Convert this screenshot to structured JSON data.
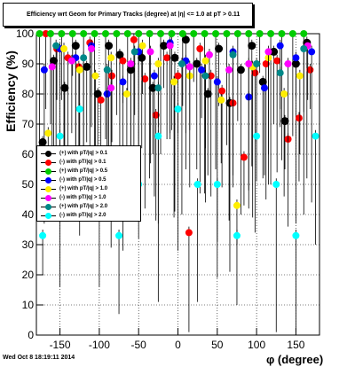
{
  "header": {
    "title": "Efficiency wrt Geom for Primary Tracks (degree) at |η| <= 1.0 at pT > 0.11"
  },
  "footer": {
    "timestamp": "Wed Oct  8 18:19:11 2014"
  },
  "chart_data": {
    "type": "scatter",
    "title": "Efficiency wrt Geom for Primary Tracks (degree) at |η| <= 1.0 at pT > 0.11",
    "xlabel": "φ (degree)",
    "ylabel": "Efficiency (%)",
    "xlim": [
      -180,
      180
    ],
    "ylim": [
      0,
      100
    ],
    "xticks": [
      -150,
      -100,
      -50,
      0,
      50,
      100,
      150
    ],
    "yticks": [
      0,
      10,
      20,
      30,
      40,
      50,
      60,
      70,
      80,
      90,
      100
    ],
    "grid": true,
    "legend": "middle-left",
    "series": [
      {
        "name": "(+) with pT/|q| > 0.1",
        "color": "#000000",
        "marker": "circle",
        "x": [
          -172,
          -158,
          -144,
          -130,
          -116,
          -102,
          -88,
          -74,
          -60,
          -46,
          -32,
          -18,
          -4,
          10,
          24,
          38,
          52,
          66,
          80,
          94,
          108,
          122,
          136,
          150,
          164
        ],
        "y": [
          64,
          91,
          82,
          96,
          89,
          80,
          96,
          93,
          88,
          92,
          82,
          96,
          92,
          98,
          90,
          80,
          95,
          77,
          88,
          96,
          84,
          94,
          71,
          90,
          97
        ]
      },
      {
        "name": "(-) with pT/|q| > 0.1",
        "color": "#ff0000",
        "marker": "circle",
        "x": [
          -168,
          -154,
          -140,
          -126,
          -112,
          -98,
          -84,
          -70,
          -56,
          -42,
          -28,
          -14,
          0,
          14,
          28,
          42,
          56,
          70,
          84,
          98,
          112,
          126,
          140,
          154,
          168
        ],
        "y": [
          100,
          95,
          92,
          89,
          97,
          78,
          86,
          91,
          98,
          85,
          73,
          92,
          86,
          34,
          95,
          86,
          81,
          77,
          59,
          87,
          90,
          91,
          65,
          72,
          88
        ]
      },
      {
        "name": "(+) with pT/|q| > 0.5",
        "color": "#00cc00",
        "marker": "circle",
        "x": [
          -176,
          -162,
          -148,
          -134,
          -120,
          -106,
          -92,
          -78,
          -64,
          -50,
          -36,
          -22,
          -8,
          6,
          20,
          34,
          48,
          62,
          76,
          90,
          104,
          118,
          132,
          146,
          160
        ],
        "y": [
          100,
          100,
          100,
          100,
          100,
          100,
          100,
          100,
          100,
          100,
          100,
          100,
          100,
          100,
          100,
          100,
          100,
          100,
          100,
          100,
          100,
          100,
          100,
          100,
          100
        ]
      },
      {
        "name": "(-) with pT/|q| > 0.5",
        "color": "#0000ff",
        "marker": "circle",
        "x": [
          -170,
          -150,
          -130,
          -110,
          -90,
          -70,
          -50,
          -30,
          -10,
          10,
          30,
          50,
          70,
          90,
          110,
          130,
          150,
          170
        ],
        "y": [
          88,
          95,
          92,
          96,
          80,
          84,
          94,
          86,
          97,
          91,
          88,
          84,
          94,
          79,
          82,
          96,
          92,
          94
        ]
      },
      {
        "name": "(+) with pT/|q| > 1.0",
        "color": "#ffee00",
        "marker": "circle",
        "x": [
          -165,
          -145,
          -125,
          -105,
          -85,
          -65,
          -45,
          -25,
          -5,
          15,
          35,
          55,
          75,
          95,
          115,
          135,
          155
        ],
        "y": [
          67,
          95,
          88,
          86,
          92,
          80,
          96,
          90,
          84,
          86,
          91,
          78,
          43,
          89,
          92,
          80,
          86
        ]
      },
      {
        "name": "(-) with pT/|q| > 1.0",
        "color": "#ff00ff",
        "marker": "circle",
        "x": [
          -160,
          -135,
          -110,
          -85,
          -60,
          -35,
          -10,
          15,
          40,
          65,
          90,
          115,
          140,
          165
        ],
        "y": [
          89,
          91,
          95,
          82,
          90,
          94,
          96,
          89,
          93,
          88,
          90,
          94,
          90,
          96
        ]
      },
      {
        "name": "(+) with pT/|q| > 2.0",
        "color": "#008888",
        "marker": "circle",
        "x": [
          -155,
          -120,
          -90,
          -55,
          -25,
          5,
          35,
          70,
          100,
          130,
          160
        ],
        "y": [
          96,
          92,
          88,
          94,
          82,
          90,
          86,
          93,
          90,
          87,
          95
        ]
      },
      {
        "name": "(-) with pT/|q| > 2.0",
        "color": "#00ffff",
        "marker": "circle",
        "x": [
          -172,
          -150,
          -125,
          -100,
          -75,
          -50,
          -25,
          0,
          25,
          50,
          75,
          100,
          125,
          150,
          175
        ],
        "y": [
          33,
          66,
          75,
          50,
          33,
          50,
          66,
          75,
          50,
          50,
          33,
          66,
          50,
          33,
          66
        ]
      }
    ]
  }
}
